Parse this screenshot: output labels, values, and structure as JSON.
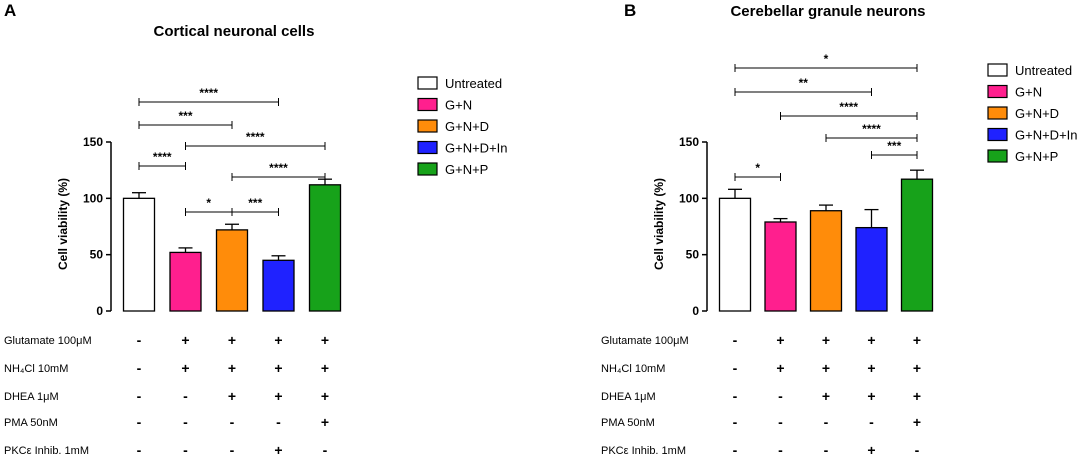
{
  "colors": {
    "untreated": "#ffffff",
    "gn": "#ff1f8e",
    "gnd": "#ff8c0a",
    "gndin": "#1f22ff",
    "gnp": "#17a21a"
  },
  "legend": [
    {
      "label": "Untreated",
      "color": "#ffffff"
    },
    {
      "label": "G+N",
      "color": "#ff1f8e"
    },
    {
      "label": "G+N+D",
      "color": "#ff8c0a"
    },
    {
      "label": "G+N+D+In",
      "color": "#1f22ff"
    },
    {
      "label": "G+N+P",
      "color": "#17a21a"
    }
  ],
  "chart_data": [
    {
      "panel": "A",
      "type": "bar",
      "title": "Cortical neuronal cells",
      "ylabel": "Cell viability (%)",
      "ylim": [
        0,
        150
      ],
      "yticks": [
        0,
        50,
        100,
        150
      ],
      "categories": [
        "Untreated",
        "G+N",
        "G+N+D",
        "G+N+D+In",
        "G+N+P"
      ],
      "values": [
        100,
        52,
        72,
        45,
        112
      ],
      "errors": [
        5,
        4,
        5,
        4,
        5
      ],
      "significance": [
        {
          "from": 0,
          "to": 3,
          "label": "****"
        },
        {
          "from": 0,
          "to": 2,
          "label": "***"
        },
        {
          "from": 1,
          "to": 4,
          "label": "****"
        },
        {
          "from": 0,
          "to": 1,
          "label": "****"
        },
        {
          "from": 2,
          "to": 4,
          "label": "****"
        },
        {
          "from": 1,
          "to": 2,
          "label": "*"
        },
        {
          "from": 2,
          "to": 3,
          "label": "***"
        }
      ],
      "conditions": [
        {
          "label": "Glutamate 100μM",
          "values": [
            "-",
            "+",
            "+",
            "+",
            "+"
          ]
        },
        {
          "label": "NH₄Cl 10mM",
          "values": [
            "-",
            "+",
            "+",
            "+",
            "+"
          ]
        },
        {
          "label": "DHEA 1μM",
          "values": [
            "-",
            "-",
            "+",
            "+",
            "+"
          ]
        },
        {
          "label": "PMA 50nM",
          "values": [
            "-",
            "-",
            "-",
            "-",
            "+"
          ]
        },
        {
          "label": "PKCε Inhib. 1mM",
          "values": [
            "-",
            "-",
            "-",
            "+",
            "-"
          ]
        }
      ]
    },
    {
      "panel": "B",
      "type": "bar",
      "title": "Cerebellar granule neurons",
      "ylabel": "Cell viability (%)",
      "ylim": [
        0,
        150
      ],
      "yticks": [
        0,
        50,
        100,
        150
      ],
      "categories": [
        "Untreated",
        "G+N",
        "G+N+D",
        "G+N+D+In",
        "G+N+P"
      ],
      "values": [
        100,
        79,
        89,
        74,
        117
      ],
      "errors": [
        8,
        3,
        5,
        16,
        8
      ],
      "significance": [
        {
          "from": 0,
          "to": 4,
          "label": "*"
        },
        {
          "from": 0,
          "to": 3,
          "label": "**"
        },
        {
          "from": 1,
          "to": 4,
          "label": "****"
        },
        {
          "from": 2,
          "to": 4,
          "label": "****"
        },
        {
          "from": 3,
          "to": 4,
          "label": "***"
        },
        {
          "from": 0,
          "to": 1,
          "label": "*"
        }
      ],
      "conditions": [
        {
          "label": "Glutamate 100μM",
          "values": [
            "-",
            "+",
            "+",
            "+",
            "+"
          ]
        },
        {
          "label": "NH₄Cl 10mM",
          "values": [
            "-",
            "+",
            "+",
            "+",
            "+"
          ]
        },
        {
          "label": "DHEA 1μM",
          "values": [
            "-",
            "-",
            "+",
            "+",
            "+"
          ]
        },
        {
          "label": "PMA 50nM",
          "values": [
            "-",
            "-",
            "-",
            "-",
            "+"
          ]
        },
        {
          "label": "PKCε Inhib. 1mM",
          "values": [
            "-",
            "-",
            "-",
            "+",
            "-"
          ]
        }
      ]
    }
  ]
}
